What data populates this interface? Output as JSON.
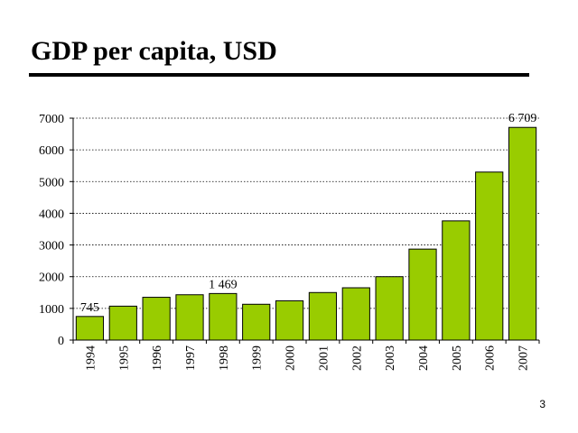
{
  "slide": {
    "title": "GDP per capita, USD",
    "page_number": "3"
  },
  "colors": {
    "bar_fill": "#99cc00",
    "bar_stroke": "#000000",
    "grid": "#000000",
    "text": "#000000"
  },
  "chart_data": {
    "type": "bar",
    "title": "",
    "xlabel": "",
    "ylabel": "",
    "ylim": [
      0,
      7000
    ],
    "yticks": [
      0,
      1000,
      2000,
      3000,
      4000,
      5000,
      6000,
      7000
    ],
    "grid": true,
    "categories": [
      "1994",
      "1995",
      "1996",
      "1997",
      "1998",
      "1999",
      "2000",
      "2001",
      "2002",
      "2003",
      "2004",
      "2005",
      "2006",
      "2007"
    ],
    "values": [
      745,
      1070,
      1350,
      1430,
      1469,
      1130,
      1240,
      1500,
      1650,
      2000,
      2870,
      3760,
      5300,
      6709
    ],
    "data_labels": [
      {
        "index": 0,
        "text": "745"
      },
      {
        "index": 4,
        "text": "1 469"
      },
      {
        "index": 13,
        "text": "6 709"
      }
    ]
  }
}
